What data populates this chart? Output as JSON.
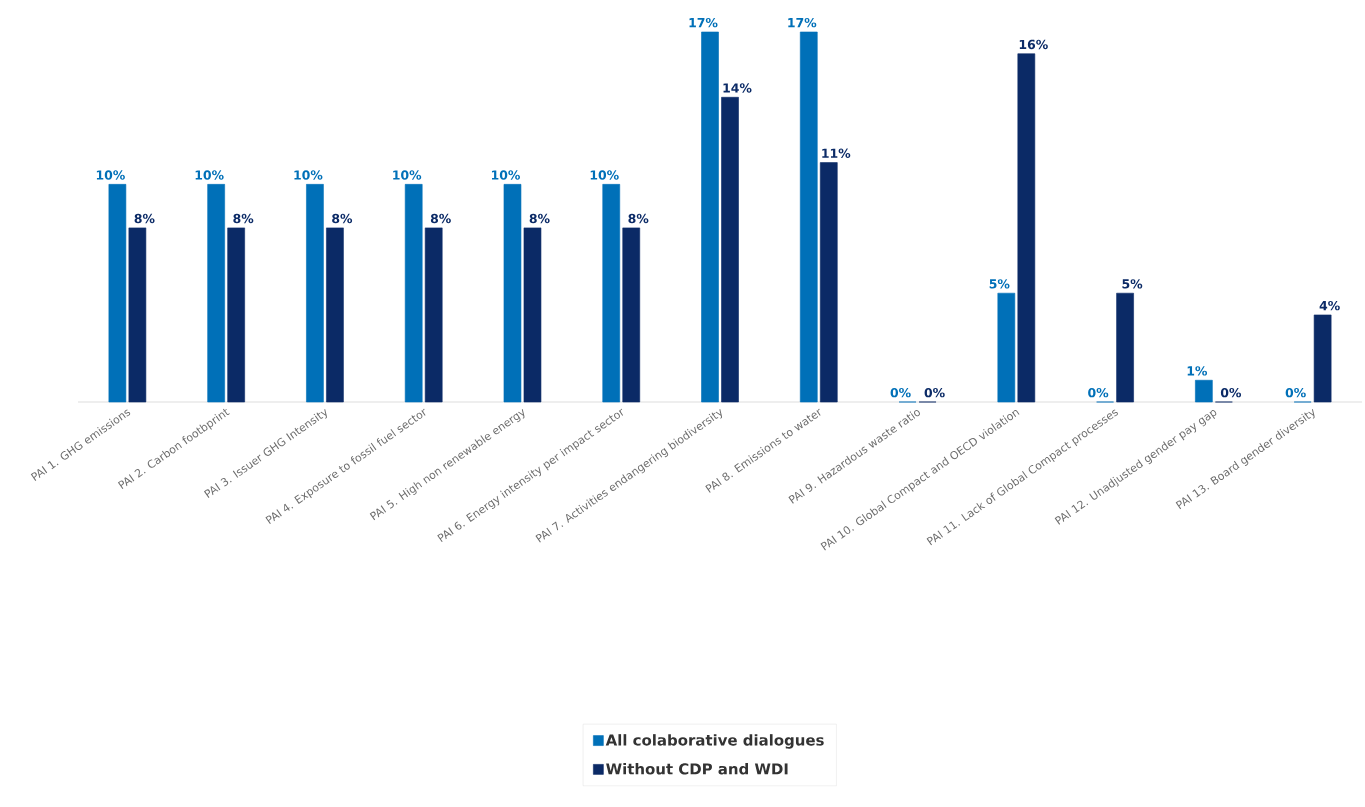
{
  "chart_data": {
    "type": "bar",
    "categories": [
      "PAI 1. GHG emissions",
      "PAI 2. Carbon footbprint",
      "PAI 3. Issuer GHG Intensity",
      "PAI 4. Exposure to fossil fuel sector",
      "PAI 5. High non renewable energy",
      "PAI 6. Energy intensity per impact sector",
      "PAI 7. Activities endangering biodiversity",
      "PAI 8. Emissions to water",
      "PAI 9. Hazardous waste ratio",
      "PAI 10. Global Compact and OECD violation",
      "PAI 11. Lack of Global Compact processes",
      "PAI 12. Unadjusted gender pay gap",
      "PAI 13. Board gender diversity"
    ],
    "series": [
      {
        "name": "All colaborative dialogues",
        "color": "#0070b8",
        "values": [
          10,
          10,
          10,
          10,
          10,
          10,
          17,
          17,
          0,
          5,
          0,
          1,
          0
        ],
        "value_labels": [
          "10%",
          "10%",
          "10%",
          "10%",
          "10%",
          "10%",
          "17%",
          "17%",
          "0%",
          "5%",
          "0%",
          "1%",
          "0%"
        ]
      },
      {
        "name": "Without CDP and WDI",
        "color": "#0b2a66",
        "values": [
          8,
          8,
          8,
          8,
          8,
          8,
          14,
          11,
          0,
          16,
          5,
          0,
          4
        ],
        "value_labels": [
          "8%",
          "8%",
          "8%",
          "8%",
          "8%",
          "8%",
          "14%",
          "11%",
          "0%",
          "16%",
          "5%",
          "0%",
          "4%"
        ]
      }
    ],
    "legend": "bottom"
  }
}
